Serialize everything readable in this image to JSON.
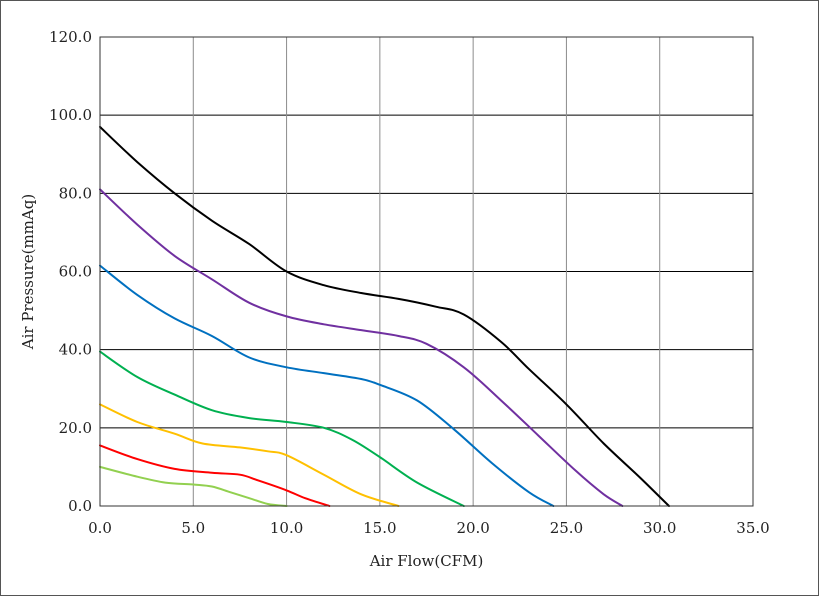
{
  "chart_data": {
    "type": "line",
    "title": "",
    "xlabel": "Air Flow(CFM)",
    "ylabel": "Air Pressure(mmAq)",
    "xlim": [
      0,
      35
    ],
    "ylim": [
      0,
      120
    ],
    "x_ticks": [
      "0.0",
      "5.0",
      "10.0",
      "15.0",
      "20.0",
      "25.0",
      "30.0",
      "35.0"
    ],
    "y_ticks": [
      "0.0",
      "20.0",
      "40.0",
      "60.0",
      "80.0",
      "100.0",
      "120.0"
    ],
    "grid": true,
    "legend": "none",
    "series": [
      {
        "color": "#000000",
        "x": [
          0,
          2,
          4,
          6,
          8,
          10,
          12,
          14,
          16,
          18,
          19.5,
          21.5,
          23,
          25,
          27,
          29,
          30.5
        ],
        "y": [
          97,
          88,
          80,
          73,
          67,
          60,
          56.5,
          54.5,
          53,
          51,
          49,
          42,
          35,
          26,
          16,
          7,
          0
        ]
      },
      {
        "color": "#7030a0",
        "x": [
          0,
          2,
          4,
          6,
          8,
          10,
          12,
          14,
          16,
          17.5,
          19.5,
          21.5,
          23.5,
          25.5,
          27,
          28
        ],
        "y": [
          81,
          72,
          64,
          58,
          52,
          48.5,
          46.5,
          45,
          43.5,
          41.5,
          35.5,
          27,
          18,
          9,
          3,
          0
        ]
      },
      {
        "color": "#0070c0",
        "x": [
          0,
          2,
          4,
          6,
          8,
          10,
          12,
          14,
          15,
          17,
          19,
          21,
          23,
          24.3
        ],
        "y": [
          61.5,
          54,
          48,
          43.5,
          38,
          35.5,
          34,
          32.5,
          31,
          27,
          19.5,
          11,
          3.5,
          0
        ]
      },
      {
        "color": "#00b050",
        "x": [
          0,
          2,
          4,
          6,
          8,
          10,
          12,
          13.5,
          15,
          17,
          19.5
        ],
        "y": [
          39.5,
          33,
          28.5,
          24.5,
          22.5,
          21.5,
          20,
          17,
          12.5,
          6,
          0
        ]
      },
      {
        "color": "#ffc000",
        "x": [
          0,
          2,
          4,
          5.5,
          7.5,
          9,
          10,
          12,
          14,
          16
        ],
        "y": [
          26,
          21.5,
          18.5,
          16,
          15,
          14,
          13,
          8,
          3,
          0
        ]
      },
      {
        "color": "#ff0000",
        "x": [
          0,
          2,
          4,
          6,
          7.5,
          8.5,
          10,
          11,
          12.3
        ],
        "y": [
          15.5,
          12,
          9.5,
          8.5,
          8,
          6.5,
          4,
          2,
          0
        ]
      },
      {
        "color": "#92d050",
        "x": [
          0,
          2,
          3.5,
          5,
          6,
          7,
          8,
          9,
          10
        ],
        "y": [
          10,
          7.5,
          6,
          5.5,
          5,
          3.5,
          2,
          0.5,
          0
        ]
      }
    ]
  }
}
